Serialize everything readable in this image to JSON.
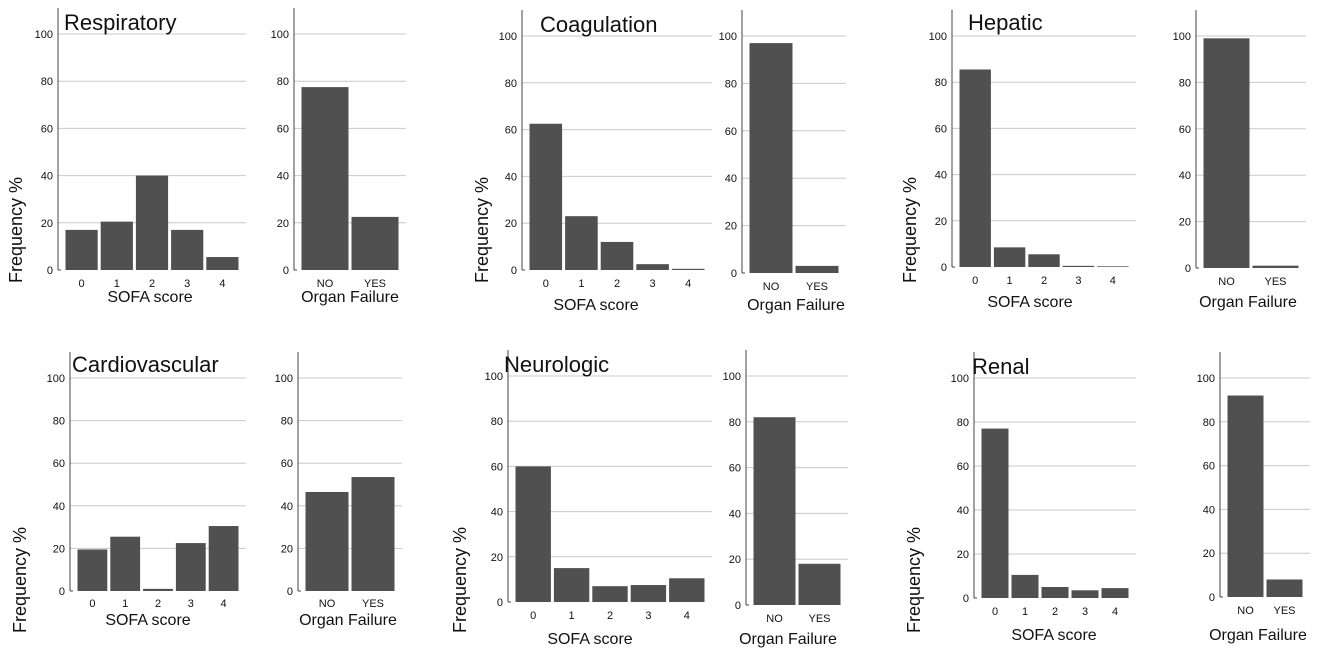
{
  "figure": {
    "y_axis_label": "Frequency %",
    "colors": {
      "bar": "#505050",
      "grid": "#c8c8c8",
      "axis": "#444444"
    }
  },
  "chart_data": [
    {
      "type": "bar",
      "title": "Respiratory",
      "xlabel": "SOFA score",
      "ylabel": "Frequency %",
      "categories": [
        "0",
        "1",
        "2",
        "3",
        "4"
      ],
      "values": [
        17,
        20.5,
        40,
        17,
        5.5
      ],
      "ylim": [
        0,
        100
      ],
      "yticks": [
        0,
        20,
        40,
        60,
        80,
        100
      ],
      "grid": true
    },
    {
      "type": "bar",
      "title": "",
      "xlabel": "Organ Failure",
      "ylabel": "",
      "categories": [
        "NO",
        "YES"
      ],
      "values": [
        77.5,
        22.5
      ],
      "ylim": [
        0,
        100
      ],
      "yticks": [
        0,
        20,
        40,
        60,
        80,
        100
      ],
      "grid": true
    },
    {
      "type": "bar",
      "title": "Coagulation",
      "xlabel": "SOFA score",
      "ylabel": "Frequency %",
      "categories": [
        "0",
        "1",
        "2",
        "3",
        "4"
      ],
      "values": [
        62.5,
        23,
        12,
        2.5,
        0.5
      ],
      "ylim": [
        0,
        100
      ],
      "yticks": [
        0,
        20,
        40,
        60,
        80,
        100
      ],
      "grid": true
    },
    {
      "type": "bar",
      "title": "",
      "xlabel": "Organ Failure",
      "ylabel": "",
      "categories": [
        "NO",
        "YES"
      ],
      "values": [
        97,
        3
      ],
      "ylim": [
        0,
        100
      ],
      "yticks": [
        0,
        20,
        40,
        60,
        80,
        100
      ],
      "grid": true
    },
    {
      "type": "bar",
      "title": "Hepatic",
      "xlabel": "SOFA score",
      "ylabel": "Frequency %",
      "categories": [
        "0",
        "1",
        "2",
        "3",
        "4"
      ],
      "values": [
        85.5,
        8.5,
        5.5,
        0.5,
        0.3
      ],
      "ylim": [
        0,
        100
      ],
      "yticks": [
        0,
        20,
        40,
        60,
        80,
        100
      ],
      "grid": true
    },
    {
      "type": "bar",
      "title": "",
      "xlabel": "Organ Failure",
      "ylabel": "",
      "categories": [
        "NO",
        "YES"
      ],
      "values": [
        99,
        1
      ],
      "ylim": [
        0,
        100
      ],
      "yticks": [
        0,
        20,
        40,
        60,
        80,
        100
      ],
      "grid": true
    },
    {
      "type": "bar",
      "title": "Cardiovascular",
      "xlabel": "SOFA score",
      "ylabel": "Frequency %",
      "categories": [
        "0",
        "1",
        "2",
        "3",
        "4"
      ],
      "values": [
        19.5,
        25.5,
        1,
        22.5,
        30.5
      ],
      "ylim": [
        0,
        100
      ],
      "yticks": [
        0,
        20,
        40,
        60,
        80,
        100
      ],
      "grid": true
    },
    {
      "type": "bar",
      "title": "",
      "xlabel": "Organ Failure",
      "ylabel": "",
      "categories": [
        "NO",
        "YES"
      ],
      "values": [
        46.5,
        53.5
      ],
      "ylim": [
        0,
        100
      ],
      "yticks": [
        0,
        20,
        40,
        60,
        80,
        100
      ],
      "grid": true
    },
    {
      "type": "bar",
      "title": "Neurologic",
      "xlabel": "SOFA score",
      "ylabel": "Frequency %",
      "categories": [
        "0",
        "1",
        "2",
        "3",
        "4"
      ],
      "values": [
        60,
        15,
        7,
        7.5,
        10.5
      ],
      "ylim": [
        0,
        100
      ],
      "yticks": [
        0,
        20,
        40,
        60,
        80,
        100
      ],
      "grid": true
    },
    {
      "type": "bar",
      "title": "",
      "xlabel": "Organ Failure",
      "ylabel": "",
      "categories": [
        "NO",
        "YES"
      ],
      "values": [
        82,
        18
      ],
      "ylim": [
        0,
        100
      ],
      "yticks": [
        0,
        20,
        40,
        60,
        80,
        100
      ],
      "grid": true
    },
    {
      "type": "bar",
      "title": "Renal",
      "xlabel": "SOFA score",
      "ylabel": "Frequency %",
      "categories": [
        "0",
        "1",
        "2",
        "3",
        "4"
      ],
      "values": [
        77,
        10.5,
        5,
        3.5,
        4.5
      ],
      "ylim": [
        0,
        100
      ],
      "yticks": [
        0,
        20,
        40,
        60,
        80,
        100
      ],
      "grid": true
    },
    {
      "type": "bar",
      "title": "",
      "xlabel": "Organ Failure",
      "ylabel": "",
      "categories": [
        "NO",
        "YES"
      ],
      "values": [
        92,
        8
      ],
      "ylim": [
        0,
        100
      ],
      "yticks": [
        0,
        20,
        40,
        60,
        80,
        100
      ],
      "grid": true
    }
  ]
}
